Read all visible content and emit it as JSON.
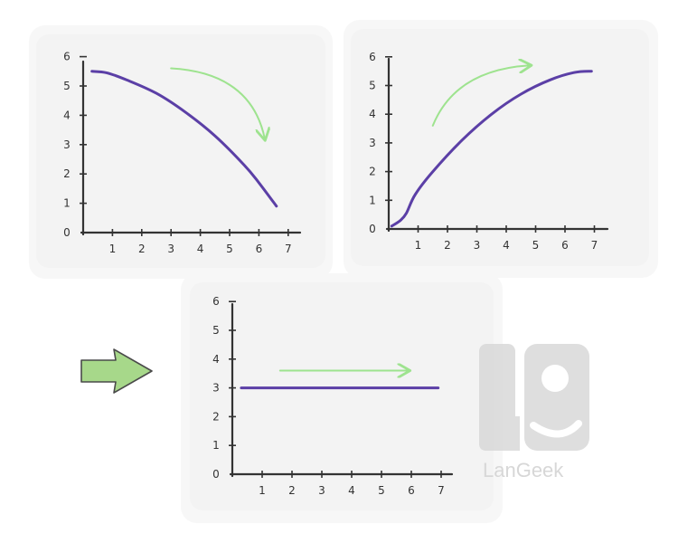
{
  "colors": {
    "curve": "#5b3fa6",
    "arrow_green": "#9ee38f",
    "big_arrow_fill": "#a7d88a",
    "panel_bg": "#f3f3f3",
    "axis": "#333333",
    "watermark": "#d9d9d9"
  },
  "watermark": {
    "text": "LanGeek",
    "icon": "langeek-logo-icon"
  },
  "big_arrow": {
    "icon": "right-arrow-icon"
  },
  "chart_data": [
    {
      "type": "line",
      "trend": "decreasing",
      "x_ticks": [
        "1",
        "2",
        "3",
        "4",
        "5",
        "6",
        "7"
      ],
      "y_ticks": [
        "0",
        "1",
        "2",
        "3",
        "4",
        "5",
        "6"
      ],
      "xlim": [
        0,
        7
      ],
      "ylim": [
        0,
        6
      ],
      "series": [
        {
          "x": [
            0.3,
            0.8,
            1.5,
            2.5,
            3.5,
            4.5,
            5.5,
            6.0,
            6.6
          ],
          "y": [
            5.5,
            5.45,
            5.2,
            4.75,
            4.1,
            3.3,
            2.3,
            1.7,
            0.9
          ]
        }
      ],
      "annotation_arrow": {
        "from": [
          3.0,
          5.6
        ],
        "to": [
          6.2,
          3.2
        ],
        "curve": "down"
      }
    },
    {
      "type": "line",
      "trend": "increasing",
      "x_ticks": [
        "1",
        "2",
        "3",
        "4",
        "5",
        "6",
        "7"
      ],
      "y_ticks": [
        "0",
        "1",
        "2",
        "3",
        "4",
        "5",
        "6"
      ],
      "xlim": [
        0,
        7
      ],
      "ylim": [
        0,
        6
      ],
      "series": [
        {
          "x": [
            0.1,
            0.4,
            0.6,
            0.9,
            1.5,
            2.5,
            3.5,
            4.5,
            5.5,
            6.3,
            6.9
          ],
          "y": [
            0.1,
            0.3,
            0.55,
            1.2,
            2.0,
            3.1,
            4.0,
            4.7,
            5.2,
            5.45,
            5.5
          ]
        }
      ],
      "annotation_arrow": {
        "from": [
          1.5,
          3.6
        ],
        "to": [
          4.8,
          5.7
        ],
        "curve": "up"
      }
    },
    {
      "type": "line",
      "trend": "constant",
      "x_ticks": [
        "1",
        "2",
        "3",
        "4",
        "5",
        "6",
        "7"
      ],
      "y_ticks": [
        "0",
        "1",
        "2",
        "3",
        "4",
        "5",
        "6"
      ],
      "xlim": [
        0,
        7
      ],
      "ylim": [
        0,
        6
      ],
      "series": [
        {
          "x": [
            0.3,
            6.9
          ],
          "y": [
            3,
            3
          ]
        }
      ],
      "annotation_arrow": {
        "from": [
          1.6,
          3.6
        ],
        "to": [
          5.9,
          3.6
        ],
        "curve": "straight"
      }
    }
  ]
}
